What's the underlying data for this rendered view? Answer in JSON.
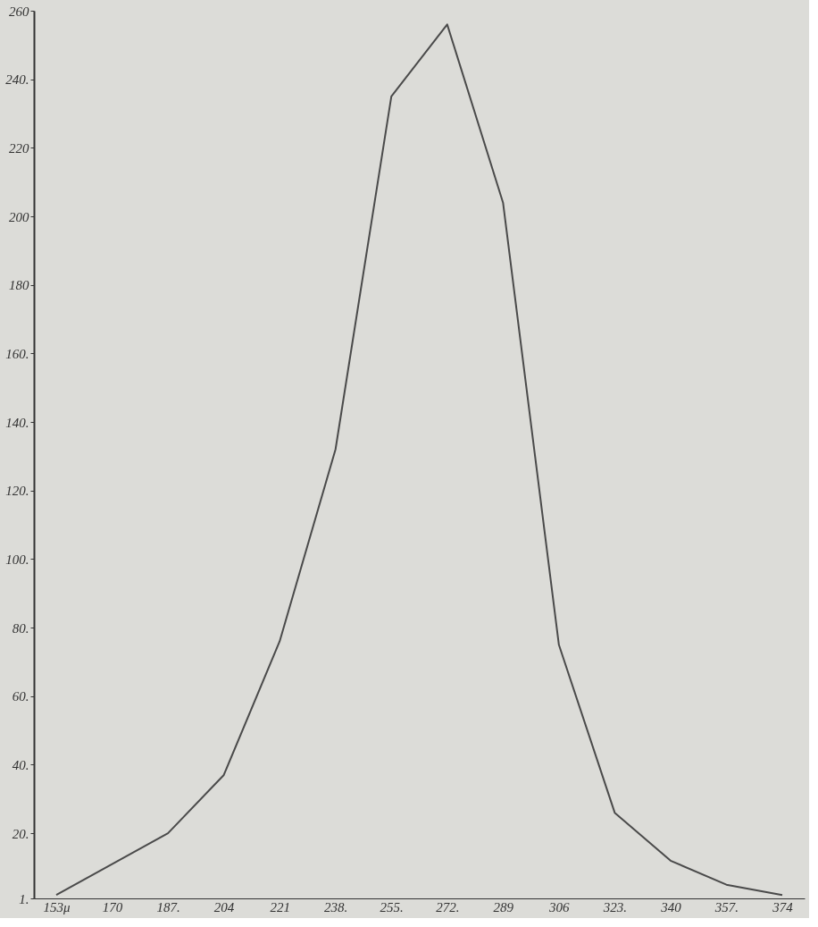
{
  "chart_data": {
    "type": "line",
    "categories": [
      "153μ",
      "170",
      "187.",
      "204",
      "221",
      "238.",
      "255.",
      "272.",
      "289",
      "306",
      "323.",
      "340",
      "357.",
      "374"
    ],
    "series": [
      {
        "color": "#4a4a4a",
        "values": [
          2,
          11,
          20,
          37,
          76,
          132,
          235,
          256,
          204,
          75,
          26,
          12,
          5,
          2
        ]
      }
    ],
    "ylim": [
      1,
      260
    ],
    "yticks": [
      {
        "value": 1,
        "label": "1."
      },
      {
        "value": 20,
        "label": "20."
      },
      {
        "value": 40,
        "label": "40."
      },
      {
        "value": 60,
        "label": "60."
      },
      {
        "value": 80,
        "label": "80."
      },
      {
        "value": 100,
        "label": "100."
      },
      {
        "value": 120,
        "label": "120."
      },
      {
        "value": 140,
        "label": "140."
      },
      {
        "value": 160,
        "label": "160."
      },
      180,
      200,
      220,
      {
        "value": 240,
        "label": "240."
      },
      260
    ],
    "marker": "none",
    "line_style": "solid"
  }
}
